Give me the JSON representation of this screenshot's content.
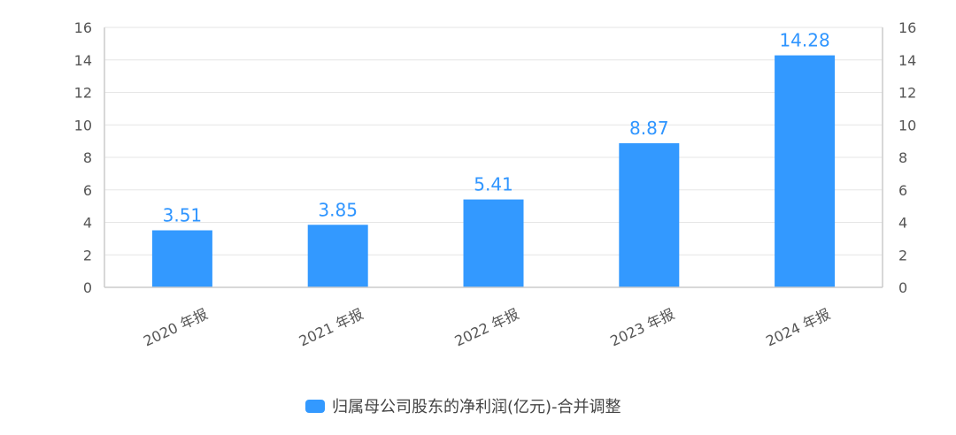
{
  "chart_data": {
    "type": "bar",
    "categories": [
      "2020 年报",
      "2021 年报",
      "2022 年报",
      "2023 年报",
      "2024 年报"
    ],
    "series": [
      {
        "name": "归属母公司股东的净利润(亿元)-合并调整",
        "values": [
          3.51,
          3.85,
          5.41,
          8.87,
          14.28
        ],
        "labels": [
          "3.51",
          "3.85",
          "5.41",
          "8.87",
          "14.28"
        ],
        "color": "#3399ff"
      }
    ],
    "ylim": [
      0,
      16
    ],
    "yticks": [
      0,
      2,
      4,
      6,
      8,
      10,
      12,
      14,
      16
    ],
    "ytick_labels": [
      "0",
      "2",
      "4",
      "6",
      "8",
      "10",
      "12",
      "14",
      "16"
    ],
    "y_axis_right_mirror": true,
    "grid": true,
    "legend_position": "bottom-center",
    "label_color": "#2f95ff",
    "grid_color": "#e6e6e6",
    "axis_color": "#cccccc"
  }
}
